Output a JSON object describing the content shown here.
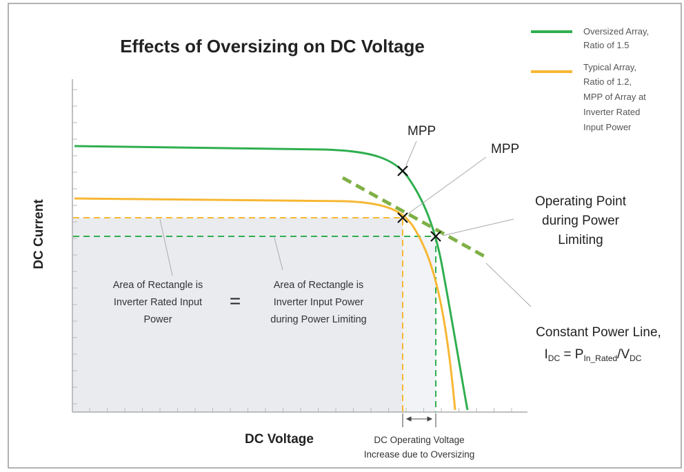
{
  "title": "Effects of Oversizing on DC Voltage",
  "legend": [
    {
      "lines": [
        "Oversized Array,",
        "Ratio of 1.5"
      ]
    },
    {
      "lines": [
        "Typical Array,",
        "Ratio of 1.2,",
        "MPP of Array at",
        "Inverter Rated",
        "Input Power"
      ]
    }
  ],
  "axes": {
    "y_label": "DC Current",
    "x_label": "DC Voltage"
  },
  "annotations": {
    "mpp_oversized": "MPP",
    "mpp_typical": "MPP",
    "operating_point": [
      "Operating Point",
      "during Power",
      "Limiting"
    ],
    "area_rated": [
      "Area of Rectangle is",
      "Inverter Rated Input",
      "Power"
    ],
    "equals": "=",
    "area_limiting": [
      "Area of Rectangle is",
      "Inverter Input Power",
      "during Power Limiting"
    ],
    "constant_power": "Constant Power Line,",
    "formula": [
      "I",
      "DC",
      " = P",
      "In_Rated",
      "/V",
      "DC"
    ],
    "voltage_increase": [
      "DC Operating Voltage",
      "Increase due to Oversizing"
    ]
  }
}
